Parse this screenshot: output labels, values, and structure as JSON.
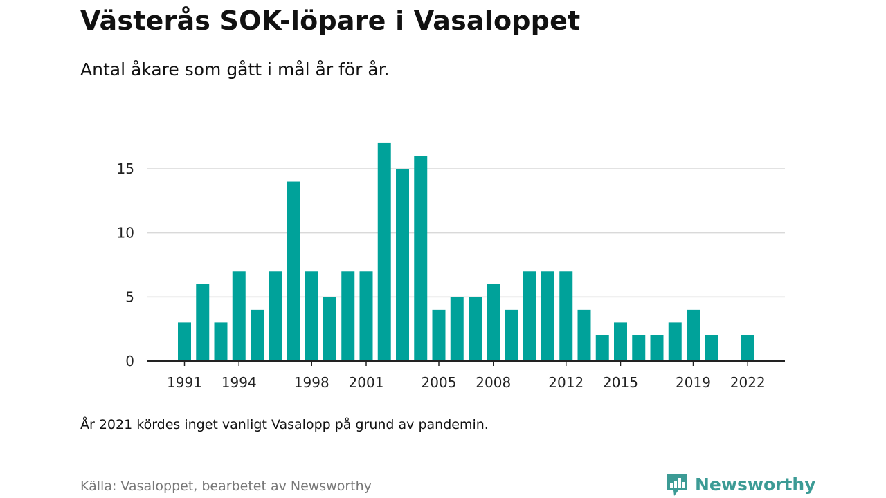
{
  "title": "Västerås SOK-löpare i Vasaloppet",
  "subtitle": "Antal åkare som gått i mål år för år.",
  "note": "År 2021 kördes inget vanligt Vasalopp på grund av pandemin.",
  "source": "Källa: Vasaloppet, bearbetet av Newsworthy",
  "brand": {
    "name": "Newsworthy",
    "icon": "newsworthy-logo-icon",
    "color": "#3c9b95"
  },
  "colors": {
    "bar": "#00a29a",
    "grid": "#d9d9d9",
    "axis": "#222222"
  },
  "chart_data": {
    "type": "bar",
    "x": [
      1991,
      1992,
      1993,
      1994,
      1995,
      1996,
      1997,
      1998,
      1999,
      2000,
      2001,
      2002,
      2003,
      2004,
      2005,
      2006,
      2007,
      2008,
      2009,
      2010,
      2011,
      2012,
      2013,
      2014,
      2015,
      2016,
      2017,
      2018,
      2019,
      2020,
      2021,
      2022
    ],
    "values": [
      3,
      6,
      3,
      7,
      4,
      7,
      14,
      7,
      5,
      7,
      7,
      17,
      15,
      16,
      4,
      5,
      5,
      6,
      4,
      7,
      7,
      7,
      4,
      2,
      3,
      2,
      2,
      3,
      4,
      2,
      null,
      2
    ],
    "x_ticks": [
      1991,
      1994,
      1998,
      2001,
      2005,
      2008,
      2012,
      2015,
      2019,
      2022
    ],
    "y_ticks": [
      0,
      5,
      10,
      15
    ],
    "ylim": [
      0,
      18
    ],
    "grid": true,
    "legend": "none"
  }
}
